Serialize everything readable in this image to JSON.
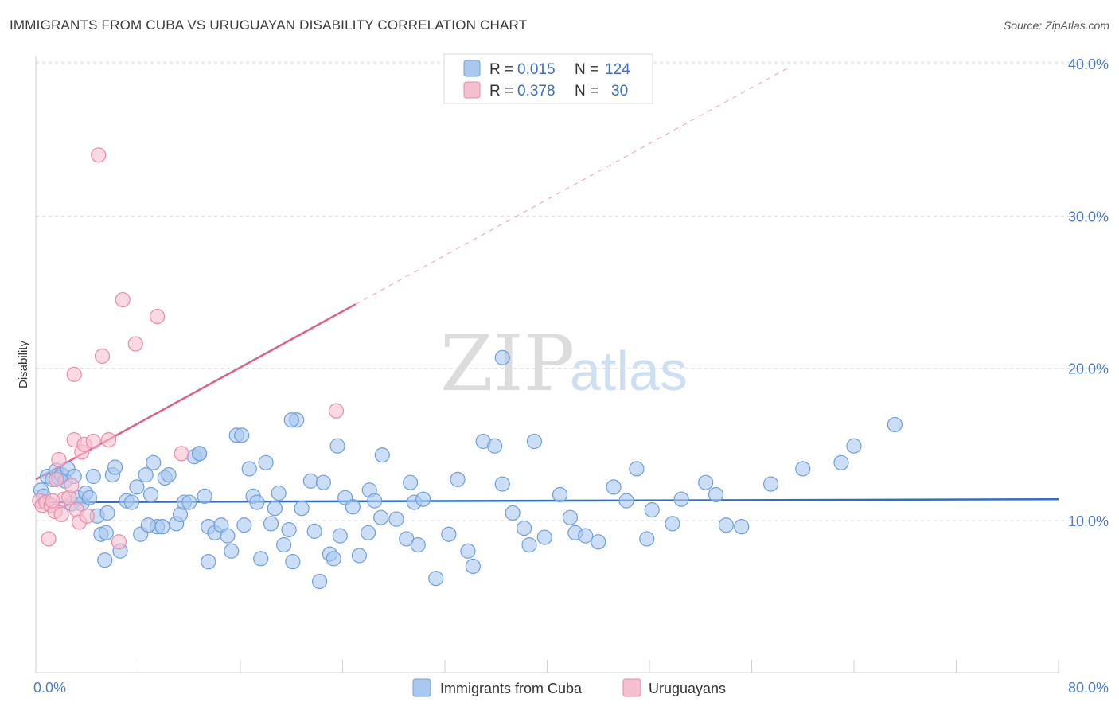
{
  "title": "IMMIGRANTS FROM CUBA VS URUGUAYAN DISABILITY CORRELATION CHART",
  "source": "Source: ZipAtlas.com",
  "watermark": {
    "zip": "ZIP",
    "atlas": "atlas"
  },
  "colors": {
    "blue_fill": "#a9c8ef",
    "blue_stroke": "#6f9fd8",
    "blue_line": "#2e6fc4",
    "pink_fill": "#f6bfd0",
    "pink_stroke": "#e98aa9",
    "pink_line": "#e0608a",
    "grid": "#dddddd",
    "tick_text": "#4a7cc7"
  },
  "legend": {
    "r_label": "R = ",
    "n_label": "N = ",
    "rows": [
      {
        "r": "0.015",
        "n": "124"
      },
      {
        "r": "0.378",
        "n": "30"
      }
    ]
  },
  "chart_data": {
    "type": "scatter",
    "title": "IMMIGRANTS FROM CUBA VS URUGUAYAN DISABILITY CORRELATION CHART",
    "xlabel": "",
    "ylabel": "Disability",
    "xlim": [
      0,
      80
    ],
    "ylim": [
      0,
      42
    ],
    "x_tick_labels": [
      "0.0%",
      "80.0%"
    ],
    "y_ticks": [
      10,
      20,
      30,
      40
    ],
    "y_tick_labels": [
      "10.0%",
      "20.0%",
      "30.0%",
      "40.0%"
    ],
    "grid": true,
    "legend_position": "top-center",
    "series": [
      {
        "name": "Immigrants from Cuba",
        "r": 0.015,
        "n": 124,
        "trend": {
          "x": [
            0,
            80
          ],
          "y": [
            11.2,
            11.4
          ],
          "dashed_to": null
        },
        "points": [
          [
            0.4,
            12.0
          ],
          [
            0.6,
            11.6
          ],
          [
            0.9,
            12.9
          ],
          [
            1.3,
            12.7
          ],
          [
            1.6,
            13.3
          ],
          [
            1.8,
            12.8
          ],
          [
            2.0,
            13.0
          ],
          [
            2.3,
            12.6
          ],
          [
            2.5,
            13.4
          ],
          [
            2.8,
            11.1
          ],
          [
            3.0,
            12.9
          ],
          [
            3.3,
            11.5
          ],
          [
            3.6,
            11.1
          ],
          [
            3.9,
            11.8
          ],
          [
            4.2,
            11.5
          ],
          [
            4.5,
            12.9
          ],
          [
            4.8,
            10.3
          ],
          [
            5.1,
            9.1
          ],
          [
            5.4,
            7.4
          ],
          [
            5.6,
            10.5
          ],
          [
            6.0,
            13.0
          ],
          [
            6.2,
            13.5
          ],
          [
            6.6,
            8.0
          ],
          [
            7.1,
            11.3
          ],
          [
            7.5,
            11.2
          ],
          [
            7.9,
            12.2
          ],
          [
            8.2,
            9.1
          ],
          [
            8.6,
            13.0
          ],
          [
            9.0,
            11.7
          ],
          [
            9.5,
            9.6
          ],
          [
            9.9,
            9.6
          ],
          [
            10.1,
            12.8
          ],
          [
            10.4,
            13.0
          ],
          [
            11.0,
            9.8
          ],
          [
            11.3,
            10.4
          ],
          [
            11.6,
            11.2
          ],
          [
            12.0,
            11.2
          ],
          [
            12.4,
            14.2
          ],
          [
            12.8,
            14.4
          ],
          [
            13.2,
            11.6
          ],
          [
            13.5,
            9.6
          ],
          [
            13.5,
            7.3
          ],
          [
            14.0,
            9.2
          ],
          [
            14.5,
            9.7
          ],
          [
            15.0,
            9.0
          ],
          [
            15.3,
            8.0
          ],
          [
            15.7,
            15.6
          ],
          [
            16.3,
            9.7
          ],
          [
            16.7,
            13.4
          ],
          [
            17.0,
            11.6
          ],
          [
            17.3,
            11.2
          ],
          [
            17.6,
            7.5
          ],
          [
            18.0,
            13.8
          ],
          [
            18.4,
            9.8
          ],
          [
            18.7,
            10.8
          ],
          [
            19.0,
            11.8
          ],
          [
            19.4,
            8.4
          ],
          [
            19.8,
            9.4
          ],
          [
            20.1,
            7.3
          ],
          [
            20.4,
            16.6
          ],
          [
            20.8,
            10.8
          ],
          [
            21.5,
            12.6
          ],
          [
            21.8,
            9.3
          ],
          [
            22.2,
            6.0
          ],
          [
            22.5,
            12.5
          ],
          [
            23.0,
            7.8
          ],
          [
            23.3,
            7.5
          ],
          [
            23.6,
            14.9
          ],
          [
            23.8,
            9.0
          ],
          [
            24.2,
            11.5
          ],
          [
            24.8,
            10.9
          ],
          [
            25.3,
            7.7
          ],
          [
            26.1,
            12.0
          ],
          [
            26.5,
            11.3
          ],
          [
            27.0,
            10.2
          ],
          [
            27.1,
            14.3
          ],
          [
            28.2,
            10.1
          ],
          [
            29.0,
            8.8
          ],
          [
            29.3,
            12.5
          ],
          [
            29.6,
            11.2
          ],
          [
            29.9,
            8.4
          ],
          [
            30.3,
            11.4
          ],
          [
            31.3,
            6.2
          ],
          [
            32.3,
            9.1
          ],
          [
            33.0,
            12.7
          ],
          [
            33.8,
            8.0
          ],
          [
            34.2,
            7.0
          ],
          [
            35.0,
            15.2
          ],
          [
            35.9,
            14.9
          ],
          [
            36.5,
            12.4
          ],
          [
            37.3,
            10.5
          ],
          [
            38.2,
            9.5
          ],
          [
            38.6,
            8.4
          ],
          [
            39.0,
            15.2
          ],
          [
            39.8,
            8.9
          ],
          [
            41.0,
            11.7
          ],
          [
            41.8,
            10.2
          ],
          [
            42.2,
            9.2
          ],
          [
            44.0,
            8.6
          ],
          [
            45.2,
            12.2
          ],
          [
            46.2,
            11.3
          ],
          [
            47.0,
            13.4
          ],
          [
            47.8,
            8.8
          ],
          [
            48.2,
            10.7
          ],
          [
            49.8,
            9.8
          ],
          [
            50.5,
            11.4
          ],
          [
            52.4,
            12.5
          ],
          [
            53.2,
            11.7
          ],
          [
            54.0,
            9.7
          ],
          [
            55.2,
            9.6
          ],
          [
            57.5,
            12.4
          ],
          [
            60.0,
            13.4
          ],
          [
            63.0,
            13.8
          ],
          [
            64.0,
            14.9
          ],
          [
            67.2,
            16.3
          ],
          [
            20.0,
            16.6
          ],
          [
            16.1,
            15.6
          ],
          [
            36.5,
            20.7
          ],
          [
            12.8,
            14.4
          ],
          [
            9.2,
            13.8
          ],
          [
            5.5,
            9.2
          ],
          [
            8.8,
            9.7
          ],
          [
            26.0,
            9.2
          ],
          [
            43.0,
            9.0
          ]
        ]
      },
      {
        "name": "Uruguayans",
        "r": 0.378,
        "n": 30,
        "trend": {
          "x": [
            0,
            25
          ],
          "y": [
            12.7,
            24.2
          ],
          "dashed_to": {
            "x": 59,
            "y": 39.8
          }
        },
        "points": [
          [
            0.3,
            11.3
          ],
          [
            0.5,
            11.0
          ],
          [
            0.8,
            11.2
          ],
          [
            1.0,
            8.8
          ],
          [
            1.2,
            11.0
          ],
          [
            1.5,
            10.6
          ],
          [
            1.6,
            12.7
          ],
          [
            1.8,
            14.0
          ],
          [
            2.0,
            10.4
          ],
          [
            2.2,
            11.4
          ],
          [
            2.6,
            11.5
          ],
          [
            2.8,
            12.3
          ],
          [
            3.0,
            15.3
          ],
          [
            3.2,
            10.7
          ],
          [
            3.4,
            9.9
          ],
          [
            3.6,
            14.5
          ],
          [
            3.8,
            15.0
          ],
          [
            4.0,
            10.3
          ],
          [
            4.5,
            15.2
          ],
          [
            4.9,
            34.0
          ],
          [
            5.2,
            20.8
          ],
          [
            5.7,
            15.3
          ],
          [
            6.5,
            8.6
          ],
          [
            6.8,
            24.5
          ],
          [
            7.8,
            21.6
          ],
          [
            9.5,
            23.4
          ],
          [
            11.4,
            14.4
          ],
          [
            23.5,
            17.2
          ],
          [
            3.0,
            19.6
          ],
          [
            1.3,
            11.3
          ]
        ]
      }
    ]
  },
  "bottom_legend": [
    "Immigrants from Cuba",
    "Uruguayans"
  ]
}
